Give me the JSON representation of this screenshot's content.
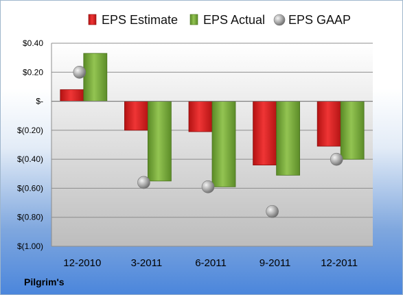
{
  "company": "Pilgrim's",
  "colors": {
    "estimate": "#dd1f1f",
    "actual": "#76a43a",
    "gaap": "#a8a8a8"
  },
  "chart_data": {
    "type": "bar",
    "categories": [
      "12-2010",
      "3-2011",
      "6-2011",
      "9-2011",
      "12-2011"
    ],
    "series": [
      {
        "name": "EPS Estimate",
        "kind": "bar",
        "values": [
          0.08,
          -0.2,
          -0.21,
          -0.44,
          -0.31
        ]
      },
      {
        "name": "EPS Actual",
        "kind": "bar",
        "values": [
          0.33,
          -0.55,
          -0.59,
          -0.51,
          -0.4
        ]
      },
      {
        "name": "EPS GAAP",
        "kind": "marker",
        "values": [
          0.2,
          -0.56,
          -0.59,
          -0.76,
          -0.4
        ]
      }
    ],
    "ylim": [
      -1.0,
      0.4
    ],
    "ytick_values": [
      0.4,
      0.2,
      0,
      -0.2,
      -0.4,
      -0.6,
      -0.8,
      -1.0
    ],
    "ytick_labels": [
      "$0.40",
      "$0.20",
      "$-",
      "$(0.20)",
      "$(0.40)",
      "$(0.60)",
      "$(0.80)",
      "$(1.00)"
    ],
    "legend_position": "top",
    "grid": true
  }
}
